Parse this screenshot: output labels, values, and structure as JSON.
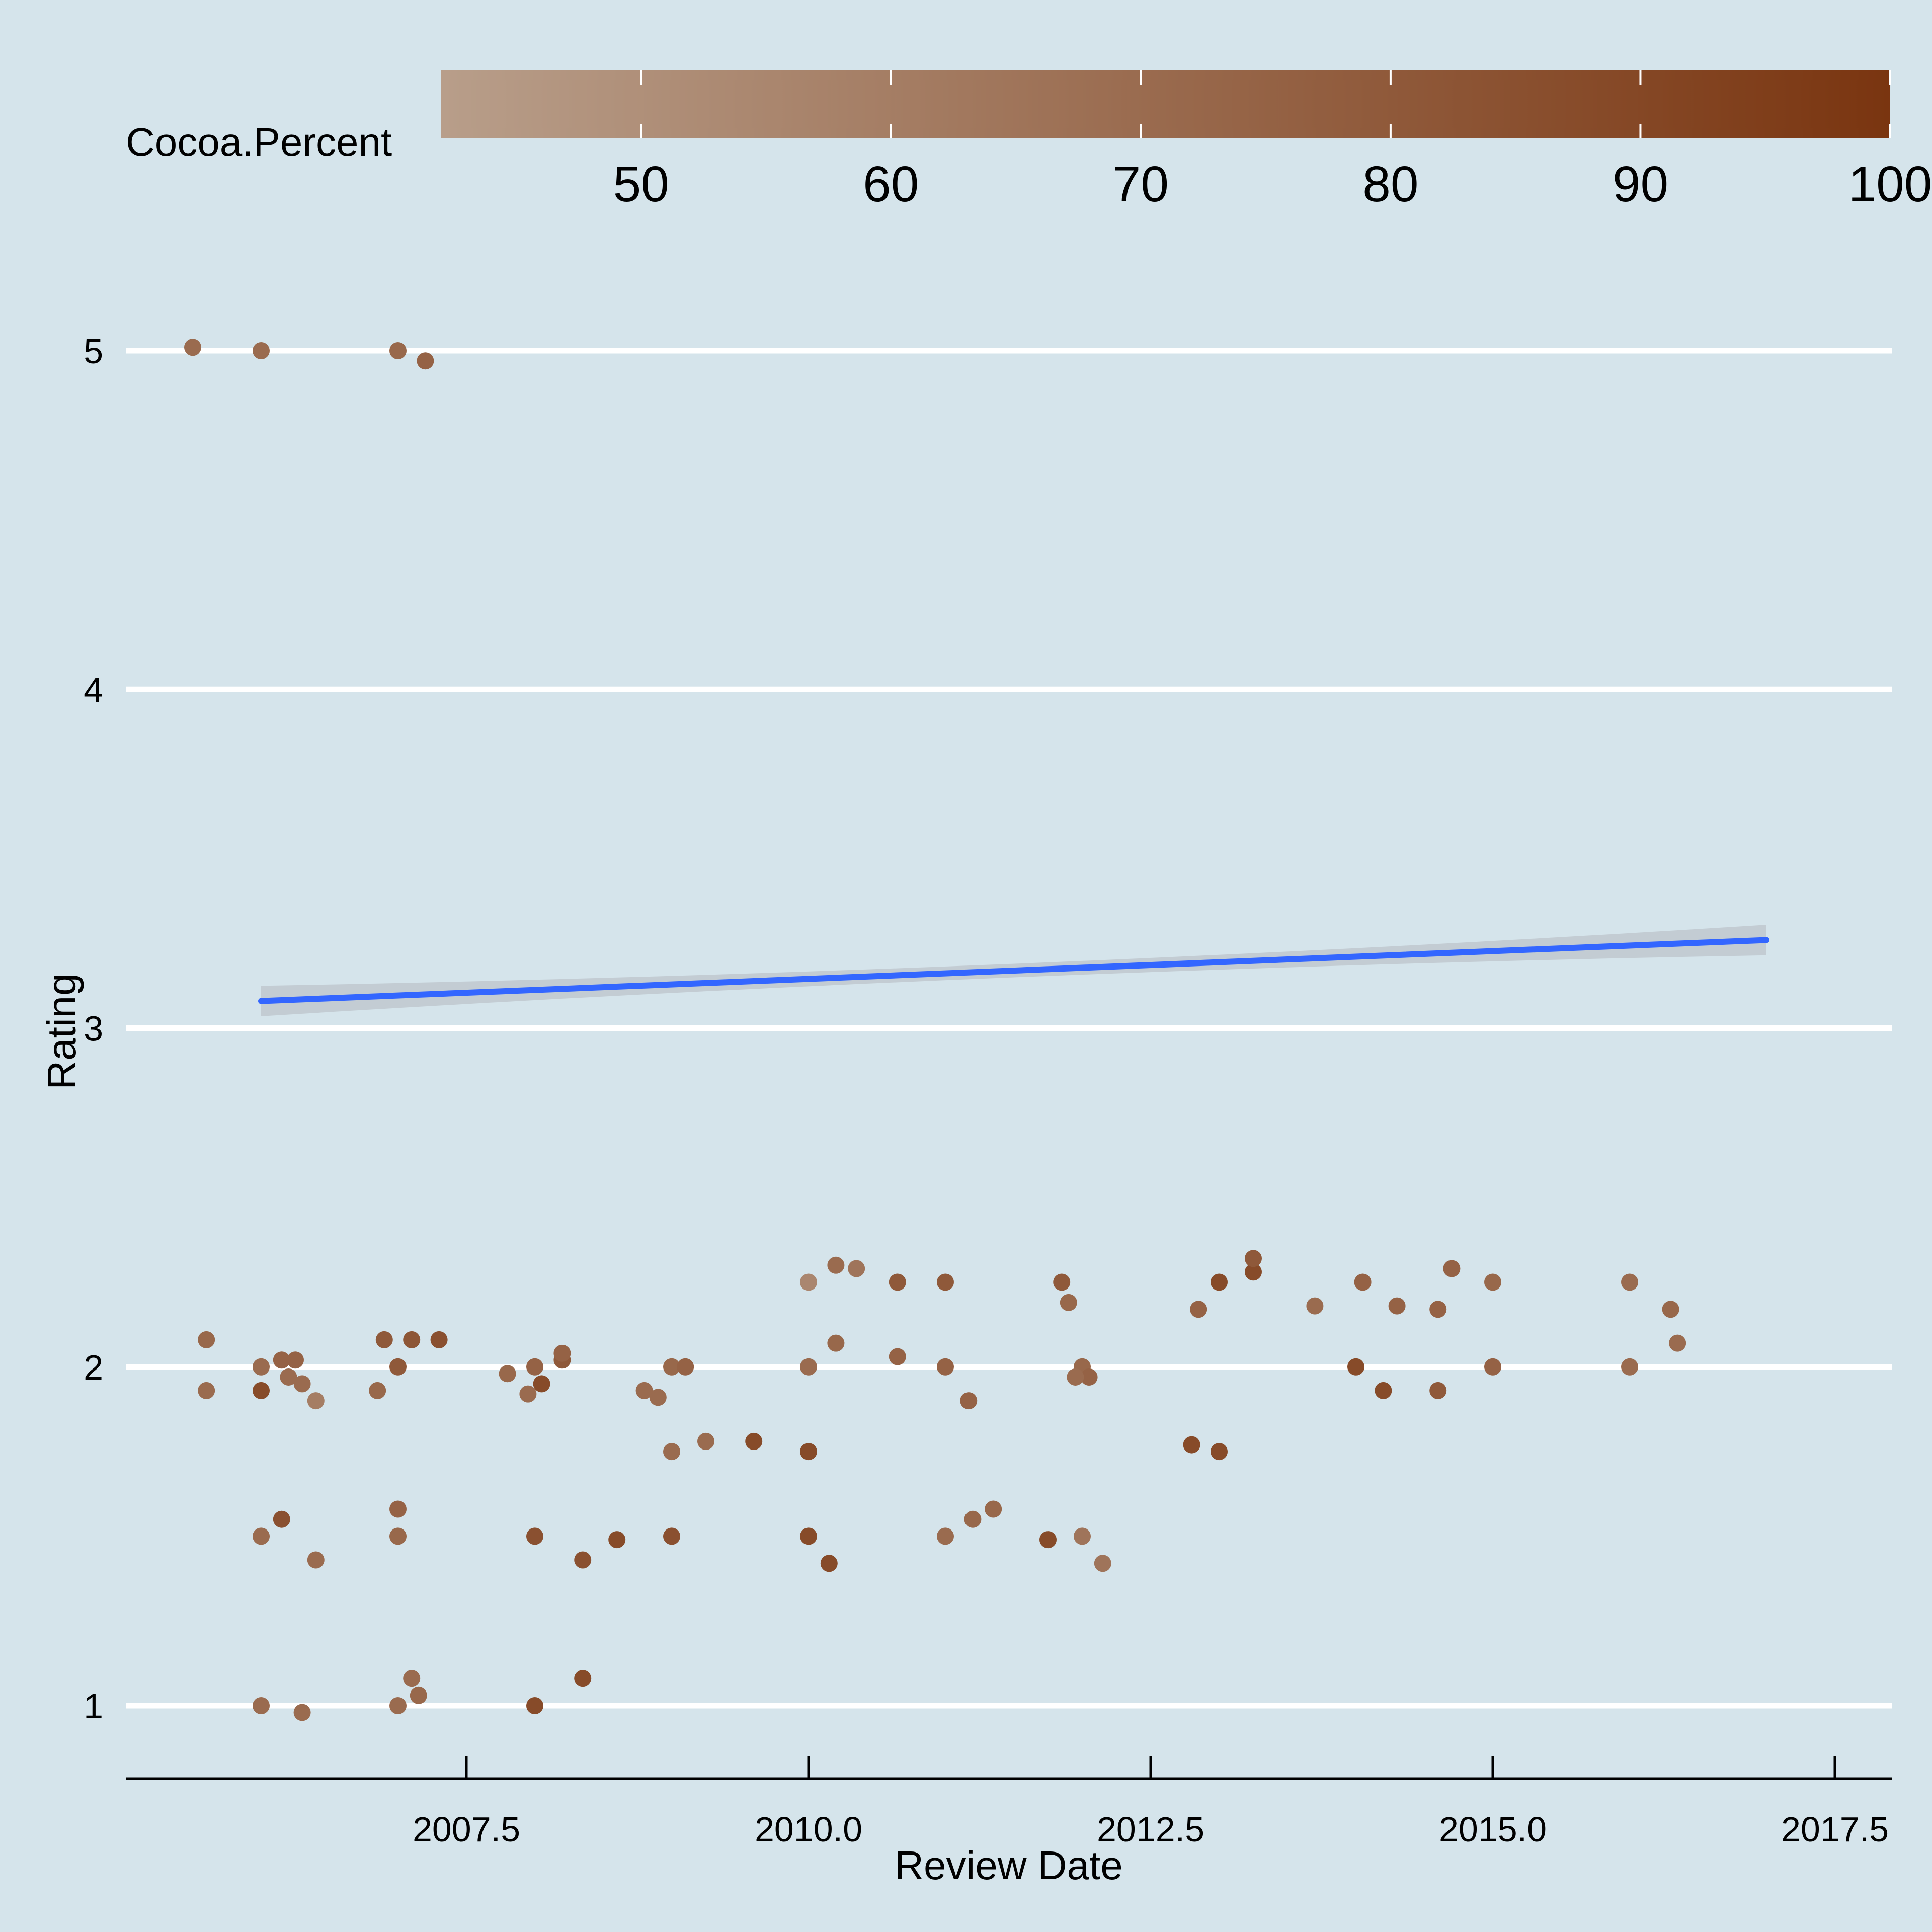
{
  "chart_data": {
    "type": "scatter",
    "title": "",
    "xlabel": "Review Date",
    "ylabel": "Rating",
    "xlim": [
      2005.2,
      2017.9
    ],
    "ylim": [
      0.8,
      5.3
    ],
    "x_ticks": [
      2007.5,
      2010.0,
      2012.5,
      2015.0,
      2017.5
    ],
    "x_tick_labels": [
      "2007.5",
      "2010.0",
      "2012.5",
      "2015.0",
      "2017.5"
    ],
    "y_ticks": [
      1,
      2,
      3,
      4,
      5
    ],
    "y_tick_labels": [
      "1",
      "2",
      "3",
      "4",
      "5"
    ],
    "grid": "horizontal major lines only",
    "legend": {
      "title": "Cocoa.Percent",
      "placement": "top",
      "range": [
        42,
        100
      ],
      "ticks": [
        50,
        60,
        70,
        80,
        90,
        100
      ],
      "tick_labels": [
        "50",
        "60",
        "70",
        "80",
        "90",
        "100"
      ],
      "color_low": "#b89e8a",
      "color_high": "#7a3510"
    },
    "trend_line": {
      "method": "linear fit with confidence band",
      "color": "#3366ff",
      "band_color": "#bfc8cf",
      "x": [
        2006,
        2017
      ],
      "y": [
        3.08,
        3.26
      ]
    },
    "point_color_note": "points colored by Cocoa.Percent; review dates jittered around each year",
    "series": [
      {
        "points": [
          [
            2005.5,
            5.01,
            70
          ],
          [
            2006.0,
            5.0,
            70
          ],
          [
            2007.0,
            5.0,
            72
          ],
          [
            2007.2,
            4.97,
            75
          ],
          [
            2006.0,
            1.0,
            70
          ],
          [
            2006.3,
            0.98,
            70
          ],
          [
            2007.0,
            1.0,
            70
          ],
          [
            2007.1,
            1.08,
            70
          ],
          [
            2007.15,
            1.03,
            72
          ],
          [
            2008.0,
            1.0,
            88
          ],
          [
            2008.35,
            1.08,
            88
          ],
          [
            2005.6,
            1.93,
            70
          ],
          [
            2005.6,
            2.08,
            72
          ],
          [
            2006.0,
            2.0,
            70
          ],
          [
            2006.0,
            1.93,
            88
          ],
          [
            2006.15,
            2.02,
            75
          ],
          [
            2006.25,
            2.02,
            75
          ],
          [
            2006.2,
            1.97,
            70
          ],
          [
            2006.3,
            1.95,
            70
          ],
          [
            2006.4,
            1.9,
            60
          ],
          [
            2006.9,
            2.08,
            80
          ],
          [
            2007.1,
            2.08,
            82
          ],
          [
            2006.85,
            1.93,
            72
          ],
          [
            2007.0,
            2.0,
            80
          ],
          [
            2007.3,
            2.08,
            85
          ],
          [
            2007.8,
            1.98,
            72
          ],
          [
            2007.95,
            1.92,
            70
          ],
          [
            2008.05,
            1.95,
            88
          ],
          [
            2008.0,
            2.0,
            75
          ],
          [
            2008.2,
            2.02,
            80
          ],
          [
            2008.2,
            2.04,
            75
          ],
          [
            2008.8,
            1.93,
            70
          ],
          [
            2008.9,
            1.91,
            70
          ],
          [
            2009.0,
            2.0,
            72
          ],
          [
            2009.1,
            2.0,
            75
          ],
          [
            2009.0,
            1.75,
            70
          ],
          [
            2009.25,
            1.78,
            70
          ],
          [
            2009.6,
            1.78,
            88
          ],
          [
            2010.0,
            1.75,
            88
          ],
          [
            2010.0,
            2.0,
            70
          ],
          [
            2010.0,
            2.25,
            55
          ],
          [
            2010.2,
            2.3,
            70
          ],
          [
            2010.35,
            2.29,
            65
          ],
          [
            2010.2,
            2.07,
            72
          ],
          [
            2010.65,
            2.03,
            75
          ],
          [
            2010.65,
            2.25,
            80
          ],
          [
            2011.0,
            2.25,
            80
          ],
          [
            2011.0,
            2.0,
            75
          ],
          [
            2011.17,
            1.9,
            75
          ],
          [
            2011.85,
            2.25,
            80
          ],
          [
            2011.9,
            2.19,
            72
          ],
          [
            2012.0,
            2.0,
            72
          ],
          [
            2012.05,
            1.97,
            75
          ],
          [
            2011.95,
            1.97,
            70
          ],
          [
            2012.8,
            1.77,
            88
          ],
          [
            2013.0,
            1.75,
            88
          ],
          [
            2012.85,
            2.17,
            75
          ],
          [
            2013.0,
            2.25,
            88
          ],
          [
            2013.25,
            2.28,
            88
          ],
          [
            2013.25,
            2.32,
            80
          ],
          [
            2013.7,
            2.18,
            70
          ],
          [
            2014.0,
            2.0,
            88
          ],
          [
            2014.05,
            2.25,
            75
          ],
          [
            2014.2,
            1.93,
            88
          ],
          [
            2014.3,
            2.18,
            75
          ],
          [
            2014.6,
            2.17,
            75
          ],
          [
            2014.6,
            1.93,
            80
          ],
          [
            2014.7,
            2.29,
            75
          ],
          [
            2015.0,
            2.25,
            72
          ],
          [
            2015.0,
            2.0,
            75
          ],
          [
            2016.0,
            2.0,
            70
          ],
          [
            2016.0,
            2.25,
            70
          ],
          [
            2016.3,
            2.17,
            72
          ],
          [
            2016.35,
            2.07,
            70
          ],
          [
            2006.0,
            1.5,
            70
          ],
          [
            2006.15,
            1.55,
            85
          ],
          [
            2006.4,
            1.43,
            70
          ],
          [
            2007.0,
            1.5,
            72
          ],
          [
            2007.0,
            1.58,
            75
          ],
          [
            2008.0,
            1.5,
            85
          ],
          [
            2008.35,
            1.43,
            85
          ],
          [
            2008.6,
            1.49,
            88
          ],
          [
            2009.0,
            1.5,
            85
          ],
          [
            2010.0,
            1.5,
            88
          ],
          [
            2010.15,
            1.42,
            88
          ],
          [
            2011.0,
            1.5,
            70
          ],
          [
            2011.2,
            1.55,
            72
          ],
          [
            2011.35,
            1.58,
            72
          ],
          [
            2011.75,
            1.49,
            88
          ],
          [
            2012.0,
            1.5,
            65
          ],
          [
            2012.15,
            1.42,
            65
          ]
        ]
      }
    ]
  }
}
